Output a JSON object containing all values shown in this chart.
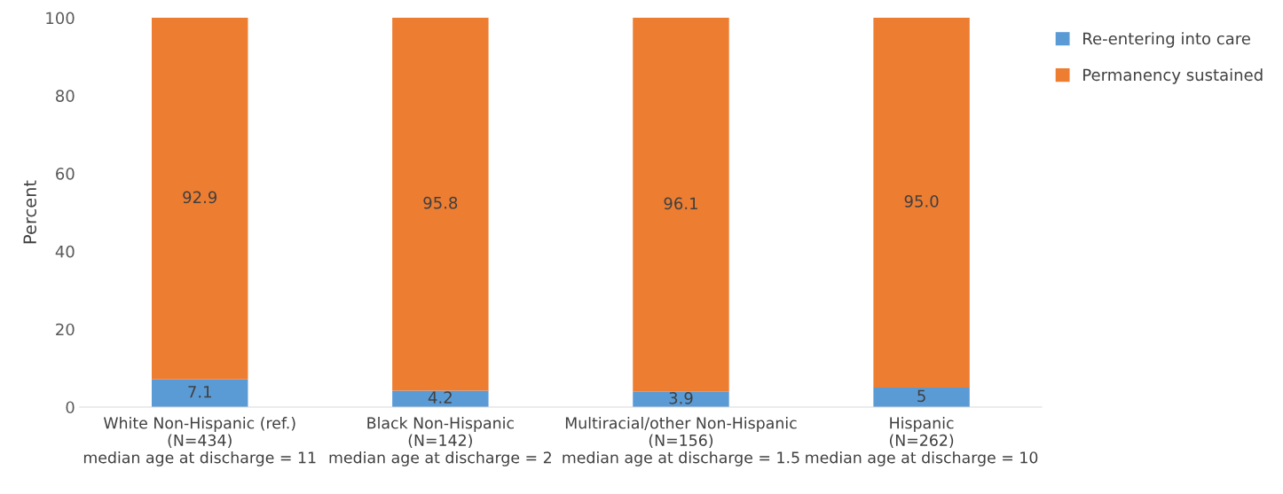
{
  "chart_data": {
    "type": "bar",
    "stacked": true,
    "ylabel": "Percent",
    "categories": [
      "White Non-Hispanic (ref.)\n(N=434)\nmedian age at discharge = 11",
      "Black Non-Hispanic\n(N=142)\nmedian age at discharge = 2",
      "Multiracial/other Non-Hispanic\n(N=156)\nmedian age at discharge = 1.5",
      "Hispanic\n(N=262)\nmedian age at discharge = 10"
    ],
    "series": [
      {
        "name": "Re-entering into care",
        "color": "#5b9bd5",
        "values": [
          7.1,
          4.2,
          3.9,
          5
        ],
        "value_labels": [
          "7.1",
          "4.2",
          "3.9",
          "5"
        ]
      },
      {
        "name": "Permanency sustained",
        "color": "#ed7d31",
        "values": [
          92.9,
          95.8,
          96.1,
          95.0
        ],
        "value_labels": [
          "92.9",
          "95.8",
          "96.1",
          "95.0"
        ]
      }
    ],
    "ylim": [
      0,
      100
    ],
    "yticks": [
      0,
      20,
      40,
      60,
      80,
      100
    ],
    "grid": false,
    "legend": "top right"
  }
}
